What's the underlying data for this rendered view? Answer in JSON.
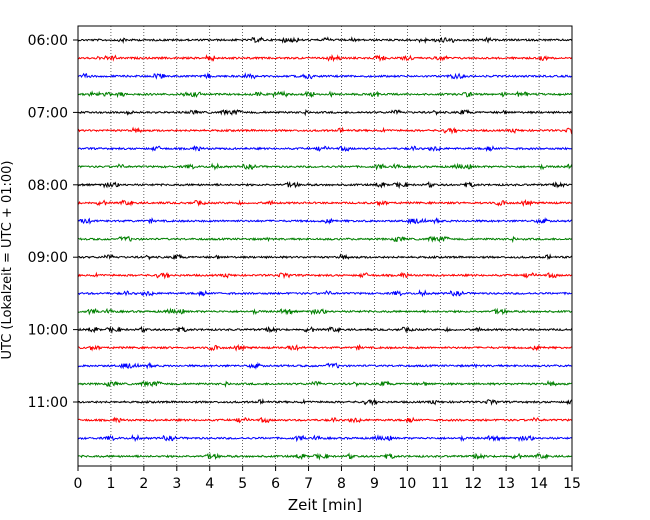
{
  "chart_data": {
    "type": "line",
    "title": "",
    "xlabel": "Zeit  [min]",
    "ylabel": "UTC (Lokalzeit = UTC + 01:00)",
    "xlim": [
      0,
      15
    ],
    "x_ticks": [
      "0",
      "1",
      "2",
      "3",
      "4",
      "5",
      "6",
      "7",
      "8",
      "9",
      "10",
      "11",
      "12",
      "13",
      "14",
      "15"
    ],
    "y_ticks": [
      "06:00",
      "07:00",
      "08:00",
      "09:00",
      "10:00",
      "11:00"
    ],
    "grid": "vertical dotted",
    "trace_start_utc": "06:00",
    "trace_interval_min": 15,
    "trace_count": 24,
    "color_cycle": [
      "#000000",
      "#ff0000",
      "#0000ff",
      "#008000"
    ],
    "series": [
      {
        "start": "06:00",
        "color": "#000000"
      },
      {
        "start": "06:15",
        "color": "#ff0000"
      },
      {
        "start": "06:30",
        "color": "#0000ff"
      },
      {
        "start": "06:45",
        "color": "#008000"
      },
      {
        "start": "07:00",
        "color": "#000000"
      },
      {
        "start": "07:15",
        "color": "#ff0000"
      },
      {
        "start": "07:30",
        "color": "#0000ff"
      },
      {
        "start": "07:45",
        "color": "#008000"
      },
      {
        "start": "08:00",
        "color": "#000000"
      },
      {
        "start": "08:15",
        "color": "#ff0000"
      },
      {
        "start": "08:30",
        "color": "#0000ff"
      },
      {
        "start": "08:45",
        "color": "#008000"
      },
      {
        "start": "09:00",
        "color": "#000000"
      },
      {
        "start": "09:15",
        "color": "#ff0000"
      },
      {
        "start": "09:30",
        "color": "#0000ff"
      },
      {
        "start": "09:45",
        "color": "#008000"
      },
      {
        "start": "10:00",
        "color": "#000000"
      },
      {
        "start": "10:15",
        "color": "#ff0000"
      },
      {
        "start": "10:30",
        "color": "#0000ff"
      },
      {
        "start": "10:45",
        "color": "#008000"
      },
      {
        "start": "11:00",
        "color": "#000000"
      },
      {
        "start": "11:15",
        "color": "#ff0000"
      },
      {
        "start": "11:30",
        "color": "#0000ff"
      },
      {
        "start": "11:45",
        "color": "#008000"
      }
    ]
  }
}
